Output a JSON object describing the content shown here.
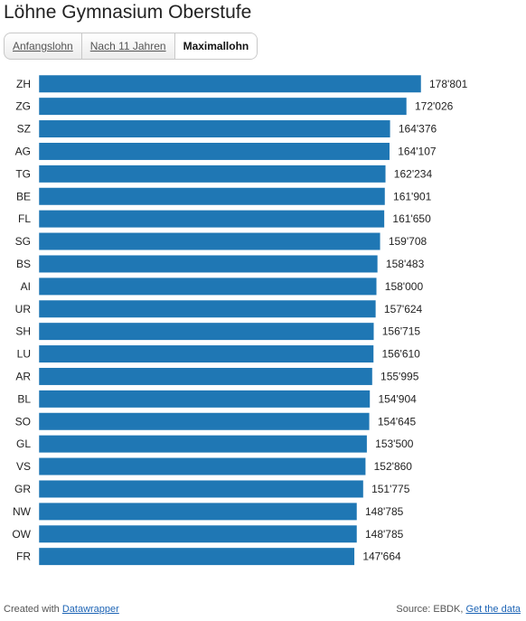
{
  "title": "Löhne Gymnasium Oberstufe",
  "tabs": [
    {
      "label": "Anfangslohn",
      "active": false
    },
    {
      "label": "Nach 11 Jahren",
      "active": false
    },
    {
      "label": "Maximallohn",
      "active": true
    }
  ],
  "chart_data": {
    "type": "bar",
    "orientation": "horizontal",
    "categories": [
      "ZH",
      "ZG",
      "SZ",
      "AG",
      "TG",
      "BE",
      "FL",
      "SG",
      "BS",
      "AI",
      "UR",
      "SH",
      "LU",
      "AR",
      "BL",
      "SO",
      "GL",
      "VS",
      "GR",
      "NW",
      "OW",
      "FR"
    ],
    "values": [
      178801,
      172026,
      164376,
      164107,
      162234,
      161901,
      161650,
      159708,
      158483,
      158000,
      157624,
      156715,
      156610,
      155995,
      154904,
      154645,
      153500,
      152860,
      151775,
      148785,
      148785,
      147664
    ],
    "value_labels": [
      "178'801",
      "172'026",
      "164'376",
      "164'107",
      "162'234",
      "161'901",
      "161'650",
      "159'708",
      "158'483",
      "158'000",
      "157'624",
      "156'715",
      "156'610",
      "155'995",
      "154'904",
      "154'645",
      "153'500",
      "152'860",
      "151'775",
      "148'785",
      "148'785",
      "147'664"
    ],
    "bar_color": "#1f77b4",
    "xlim": [
      0,
      178801
    ],
    "grid": false,
    "legend": "none"
  },
  "footer": {
    "created_prefix": "Created with",
    "created_link": "Datawrapper",
    "source_prefix": "Source: EBDK,",
    "source_link": "Get the data"
  }
}
